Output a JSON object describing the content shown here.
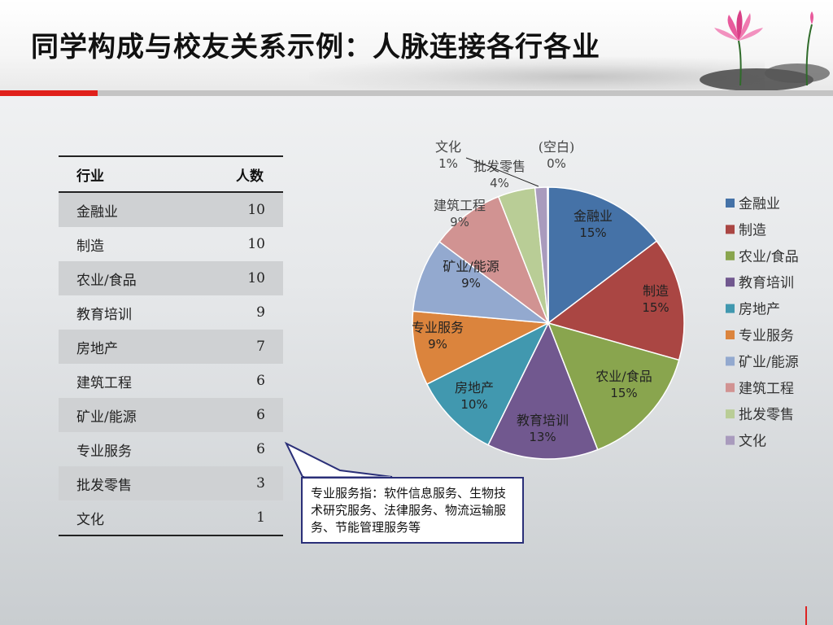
{
  "slide": {
    "title": "同学构成与校友关系示例：人脉连接各行各业"
  },
  "table": {
    "headers": [
      "行业",
      "人数"
    ],
    "rows": [
      {
        "industry": "金融业",
        "count": "10"
      },
      {
        "industry": "制造",
        "count": "10"
      },
      {
        "industry": "农业/食品",
        "count": "10"
      },
      {
        "industry": "教育培训",
        "count": "9"
      },
      {
        "industry": "房地产",
        "count": "7"
      },
      {
        "industry": "建筑工程",
        "count": "6"
      },
      {
        "industry": "矿业/能源",
        "count": "6"
      },
      {
        "industry": "专业服务",
        "count": "6"
      },
      {
        "industry": "批发零售",
        "count": "3"
      },
      {
        "industry": "文化",
        "count": "1"
      }
    ]
  },
  "callout": {
    "text": "专业服务指：软件信息服务、生物技术研究服务、法律服务、物流运输服务、节能管理服务等"
  },
  "chart_data": {
    "type": "pie",
    "title": "",
    "slices": [
      {
        "label": "金融业",
        "value": 10,
        "pct_label": "15%",
        "color": "#4572a7"
      },
      {
        "label": "制造",
        "value": 10,
        "pct_label": "15%",
        "color": "#aa4643"
      },
      {
        "label": "农业/食品",
        "value": 10,
        "pct_label": "15%",
        "color": "#89a54e"
      },
      {
        "label": "教育培训",
        "value": 9,
        "pct_label": "13%",
        "color": "#71588f"
      },
      {
        "label": "房地产",
        "value": 7,
        "pct_label": "10%",
        "color": "#4198af"
      },
      {
        "label": "专业服务",
        "value": 6,
        "pct_label": "9%",
        "color": "#db843d"
      },
      {
        "label": "矿业/能源",
        "value": 6,
        "pct_label": "9%",
        "color": "#93a9cf"
      },
      {
        "label": "建筑工程",
        "value": 6,
        "pct_label": "9%",
        "color": "#d19392"
      },
      {
        "label": "批发零售",
        "value": 3,
        "pct_label": "4%",
        "color": "#b9cd96"
      },
      {
        "label": "文化",
        "value": 1,
        "pct_label": "1%",
        "color": "#a99bbd"
      },
      {
        "label": "(空白)",
        "value": 0,
        "pct_label": "0%",
        "color": "#d9d9d9"
      }
    ],
    "legend_position": "right"
  }
}
